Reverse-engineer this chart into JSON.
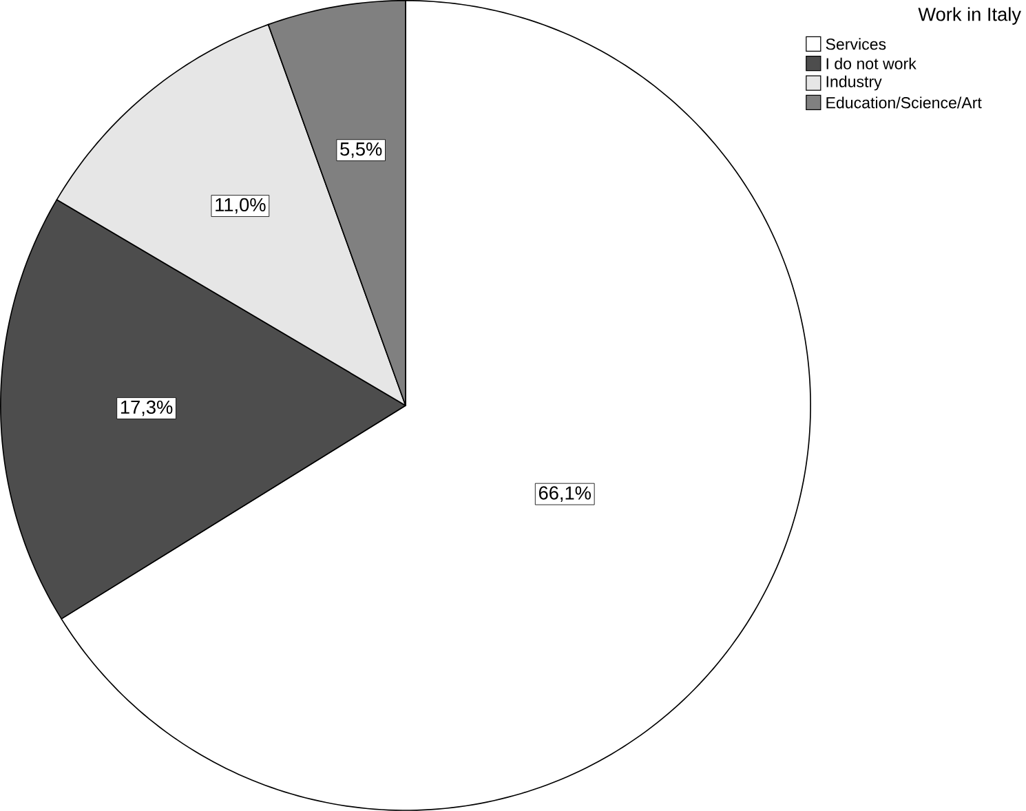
{
  "chart_data": {
    "type": "pie",
    "legend_title": "Work in Italy",
    "categories": [
      "Services",
      "I do not work",
      "Industry",
      "Education/Science/Art"
    ],
    "values": [
      66.1,
      17.3,
      11.0,
      5.5
    ],
    "value_labels": [
      "66,1%",
      "17,3%",
      "11,0%",
      "5,5%"
    ],
    "colors": [
      "#ffffff",
      "#4d4d4d",
      "#e6e6e6",
      "#808080"
    ],
    "legend": "top right"
  }
}
